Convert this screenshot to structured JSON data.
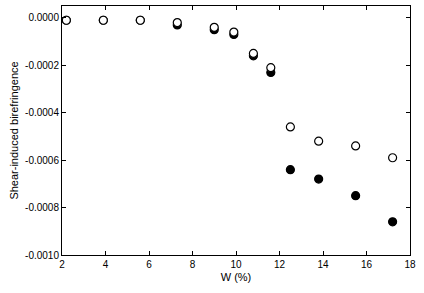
{
  "chart_data": {
    "type": "scatter",
    "x_label": "W (%)",
    "y_label": "Shear-induced birefringence",
    "xlim": [
      2,
      18
    ],
    "xticks": [
      2,
      4,
      6,
      8,
      10,
      12,
      14,
      16,
      18
    ],
    "ylim": [
      -0.001,
      5e-05
    ],
    "yticks": [
      {
        "value": 0,
        "label": "0.0000"
      },
      {
        "value": -0.0002,
        "label": "-0.0002"
      },
      {
        "value": -0.0004,
        "label": "-0.0004"
      },
      {
        "value": -0.0006,
        "label": "-0.0006"
      },
      {
        "value": -0.0008,
        "label": "-0.0008"
      },
      {
        "value": -0.001,
        "label": "-0.0010"
      }
    ],
    "grid": false,
    "series": [
      {
        "color": "#000000",
        "marker": "circle",
        "x": [
          2.2,
          3.9,
          5.6,
          7.3,
          9.0,
          9.9,
          10.8,
          11.6,
          12.5,
          13.8,
          15.5,
          17.2
        ],
        "values": [
          -1e-05,
          -1e-05,
          -1e-05,
          -3e-05,
          -5e-05,
          -7e-05,
          -0.00016,
          -0.00023,
          -0.00064,
          -0.00068,
          -0.00075,
          -0.00086
        ]
      },
      {
        "color": "#000000",
        "marker": "circle-open",
        "x": [
          2.2,
          3.9,
          5.6,
          7.3,
          9.0,
          9.9,
          10.8,
          11.6,
          12.5,
          13.8,
          15.5,
          17.2
        ],
        "values": [
          -1e-05,
          -1e-05,
          -1e-05,
          -2e-05,
          -4e-05,
          -6e-05,
          -0.00015,
          -0.00021,
          -0.00046,
          -0.00052,
          -0.00054,
          -0.00059
        ]
      }
    ]
  }
}
